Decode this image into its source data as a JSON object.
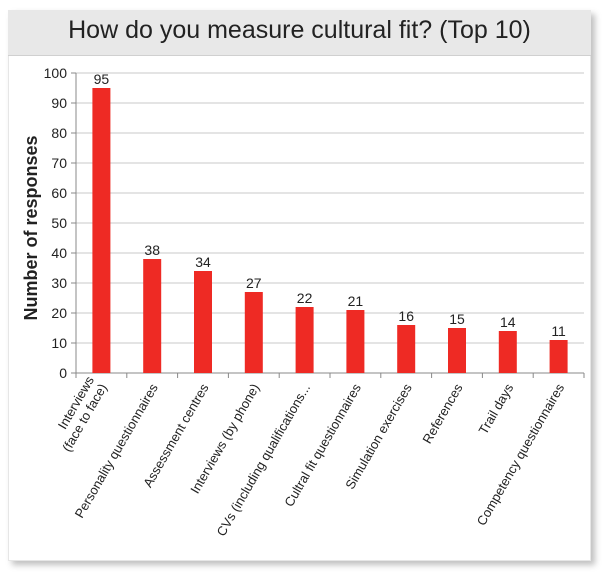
{
  "chart_data": {
    "type": "bar",
    "title": "How do you measure cultural fit? (Top 10)",
    "xlabel": "",
    "ylabel": "Number of responses",
    "ylim": [
      0,
      100
    ],
    "yticks": [
      0,
      10,
      20,
      30,
      40,
      50,
      60,
      70,
      80,
      90,
      100
    ],
    "grid": true,
    "legend": "none",
    "categories": [
      "Interviews (face to face)",
      "Personality questionnaires",
      "Assessment centres",
      "Interviews (by phone)",
      "CVs (including qualifications...",
      "Cultral fit questionnaires",
      "Simulation exercises",
      "References",
      "Trail days",
      "Competency questionnaires"
    ],
    "category_label_lines": [
      [
        "Interviews",
        "(face to face)"
      ],
      [
        "Personality questionnaires"
      ],
      [
        "Assessment centres"
      ],
      [
        "Interviews (by phone)"
      ],
      [
        "CVs (including qualifications..."
      ],
      [
        "Cultral fit questionnaires"
      ],
      [
        "Simulation exercises"
      ],
      [
        "References"
      ],
      [
        "Trail days"
      ],
      [
        "Competency questionnaires"
      ]
    ],
    "values": [
      95,
      38,
      34,
      27,
      22,
      21,
      16,
      15,
      14,
      11
    ],
    "colors": {
      "bar": "#ee2a24",
      "grid": "#c8c8c8",
      "axis": "#888888",
      "text": "#222222"
    }
  }
}
